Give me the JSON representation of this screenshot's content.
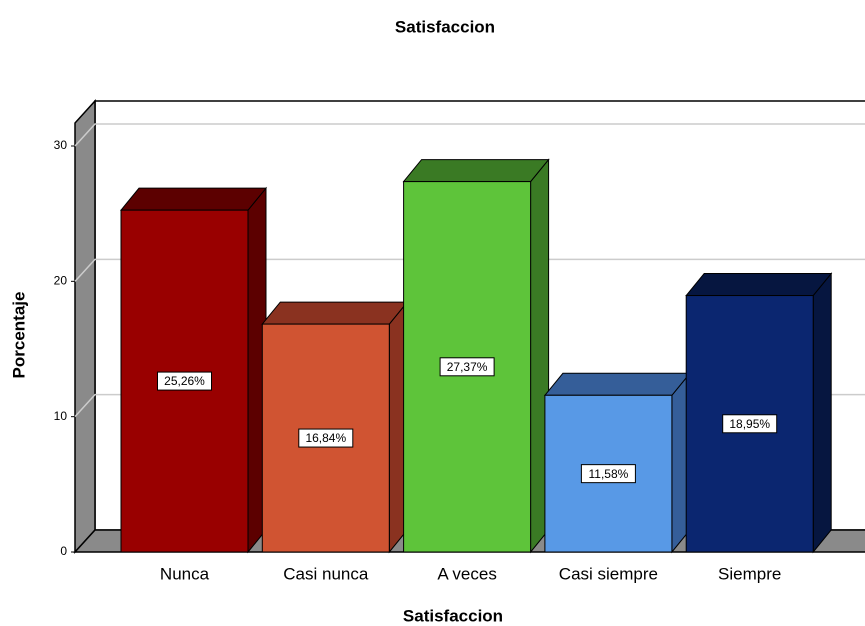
{
  "chart_data": {
    "type": "bar3d",
    "title": "Satisfaccion",
    "x_label": "Satisfaccion",
    "y_label": "Porcentaje",
    "categories": [
      "Nunca",
      "Casi nunca",
      "A veces",
      "Casi siempre",
      "Siempre"
    ],
    "values": [
      25.26,
      16.84,
      27.37,
      11.58,
      18.95
    ],
    "value_labels": [
      "25,26%",
      "16,84%",
      "27,37%",
      "11,58%",
      "18,95%"
    ],
    "colors": [
      "#990000",
      "#d05432",
      "#5ec43a",
      "#5899e6",
      "#0b2670"
    ],
    "side_colors": [
      "#5c0000",
      "#8a3220",
      "#3a7a24",
      "#355e99",
      "#061640"
    ],
    "ylim": [
      0,
      31.7
    ],
    "yticks": [
      0,
      10,
      20,
      30
    ],
    "grid": true
  }
}
